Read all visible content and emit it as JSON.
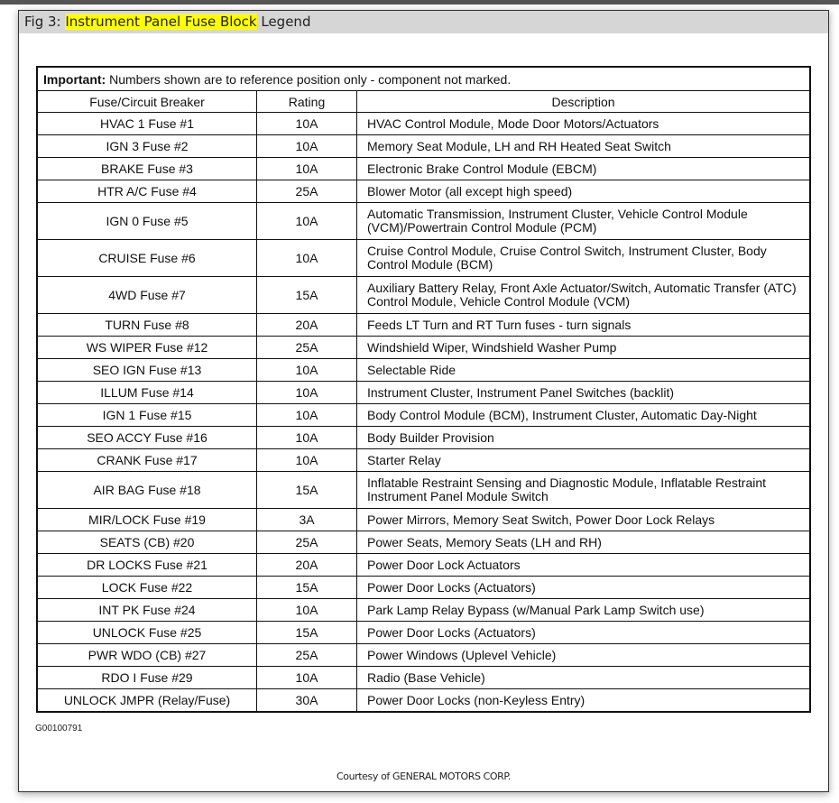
{
  "figure": {
    "prefix": "Fig 3: ",
    "highlighted": "Instrument Panel Fuse Block",
    "suffix": " Legend"
  },
  "table": {
    "important_label": "Important:",
    "important_text": " Numbers shown are to reference position only - component not marked.",
    "headers": [
      "Fuse/Circuit Breaker",
      "Rating",
      "Description"
    ],
    "rows": [
      {
        "fuse": "HVAC 1 Fuse #1",
        "rating": "10A",
        "description": "HVAC Control Module, Mode Door Motors/Actuators"
      },
      {
        "fuse": "IGN 3 Fuse #2",
        "rating": "10A",
        "description": "Memory Seat Module, LH and RH Heated Seat Switch"
      },
      {
        "fuse": "BRAKE Fuse #3",
        "rating": "10A",
        "description": "Electronic Brake Control Module (EBCM)"
      },
      {
        "fuse": "HTR A/C Fuse #4",
        "rating": "25A",
        "description": "Blower Motor (all except high speed)"
      },
      {
        "fuse": "IGN 0 Fuse #5",
        "rating": "10A",
        "description": "Automatic Transmission, Instrument Cluster, Vehicle Control Module (VCM)/Powertrain Control Module (PCM)"
      },
      {
        "fuse": "CRUISE Fuse #6",
        "rating": "10A",
        "description": "Cruise Control Module, Cruise Control Switch, Instrument Cluster, Body Control Module (BCM)"
      },
      {
        "fuse": "4WD Fuse #7",
        "rating": "15A",
        "description": "Auxiliary Battery Relay, Front Axle Actuator/Switch, Automatic Transfer (ATC) Control Module, Vehicle Control Module (VCM)"
      },
      {
        "fuse": "TURN Fuse #8",
        "rating": "20A",
        "description": "Feeds LT Turn and RT Turn fuses - turn signals"
      },
      {
        "fuse": "WS WIPER Fuse #12",
        "rating": "25A",
        "description": "Windshield Wiper, Windshield Washer Pump"
      },
      {
        "fuse": "SEO IGN Fuse #13",
        "rating": "10A",
        "description": "Selectable Ride"
      },
      {
        "fuse": "ILLUM Fuse #14",
        "rating": "10A",
        "description": "Instrument Cluster, Instrument Panel Switches (backlit)"
      },
      {
        "fuse": "IGN 1 Fuse #15",
        "rating": "10A",
        "description": "Body Control Module (BCM), Instrument Cluster, Automatic Day-Night"
      },
      {
        "fuse": "SEO ACCY Fuse #16",
        "rating": "10A",
        "description": "Body Builder Provision"
      },
      {
        "fuse": "CRANK Fuse #17",
        "rating": "10A",
        "description": "Starter Relay"
      },
      {
        "fuse": "AIR BAG Fuse #18",
        "rating": "15A",
        "description": "Inflatable Restraint Sensing and Diagnostic Module, Inflatable Restraint Instrument Panel Module Switch"
      },
      {
        "fuse": "MIR/LOCK Fuse #19",
        "rating": "3A",
        "description": "Power Mirrors, Memory Seat Switch, Power Door Lock Relays"
      },
      {
        "fuse": "SEATS (CB) #20",
        "rating": "25A",
        "description": "Power Seats, Memory Seats (LH and RH)"
      },
      {
        "fuse": "DR LOCKS Fuse #21",
        "rating": "20A",
        "description": "Power Door Lock Actuators"
      },
      {
        "fuse": "LOCK Fuse #22",
        "rating": "15A",
        "description": "Power Door Locks (Actuators)"
      },
      {
        "fuse": "INT PK Fuse #24",
        "rating": "10A",
        "description": "Park Lamp Relay Bypass (w/Manual Park Lamp Switch use)"
      },
      {
        "fuse": "UNLOCK Fuse #25",
        "rating": "15A",
        "description": "Power Door Locks (Actuators)"
      },
      {
        "fuse": "PWR WDO (CB) #27",
        "rating": "25A",
        "description": "Power Windows (Uplevel Vehicle)"
      },
      {
        "fuse": "RDO I Fuse #29",
        "rating": "10A",
        "description": "Radio (Base Vehicle)"
      },
      {
        "fuse": "UNLOCK JMPR (Relay/Fuse)",
        "rating": "30A",
        "description": "Power Door Locks (non-Keyless Entry)"
      }
    ]
  },
  "graphic_code": "G00100791",
  "courtesy": "Courtesy of GENERAL MOTORS CORP.",
  "colors": {
    "highlight": "#ffff00",
    "header_band": "#d6d6d6"
  }
}
